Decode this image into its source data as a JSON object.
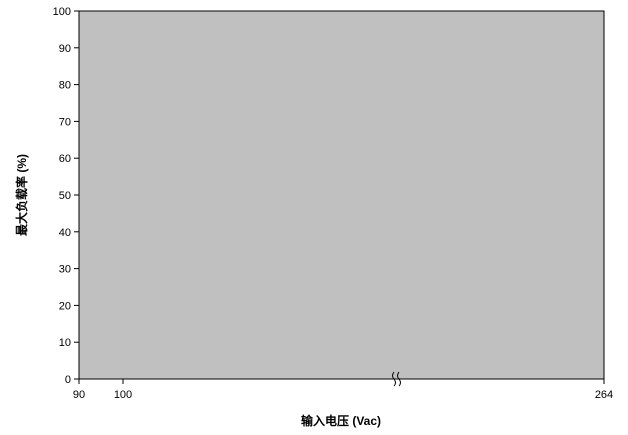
{
  "chart_data": {
    "type": "line",
    "title": "",
    "xlabel": "输入电压 (Vac)",
    "ylabel": "最大负载率 (%)",
    "x_ticks": [
      90,
      100,
      264
    ],
    "y_ticks": [
      0,
      10,
      20,
      30,
      40,
      50,
      60,
      70,
      80,
      90,
      100
    ],
    "xlim": [
      90,
      264
    ],
    "ylim": [
      0,
      100
    ],
    "axis_break": true,
    "axis_break_symbol": "≈",
    "plot_background": "#c0c0c0",
    "grid": false,
    "series": []
  }
}
